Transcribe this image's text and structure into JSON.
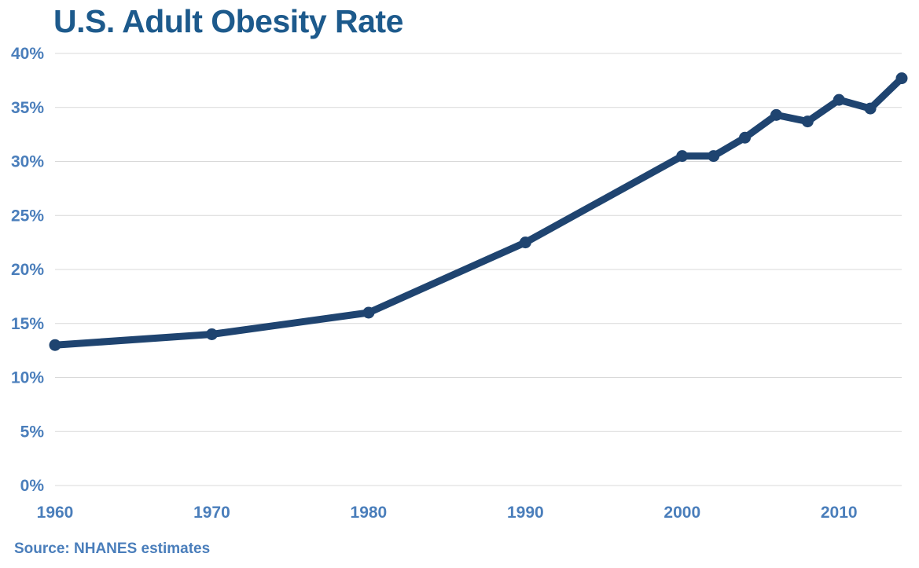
{
  "header": {
    "title": "U.S. Adult Obesity Rate",
    "title_color": "#1D5A8C"
  },
  "footer": {
    "source_label": "Source: NHANES estimates"
  },
  "chart_data": {
    "type": "line",
    "title": "U.S. Adult Obesity Rate",
    "x": [
      1960,
      1970,
      1980,
      1990,
      2000,
      2002,
      2004,
      2006,
      2008,
      2010,
      2012,
      2014
    ],
    "series": [
      {
        "name": "U.S. adult obesity rate (%)",
        "values": [
          13.0,
          14.0,
          16.0,
          22.5,
          30.5,
          30.5,
          32.2,
          34.3,
          33.7,
          35.7,
          34.9,
          37.7
        ]
      }
    ],
    "xlabel": "",
    "ylabel": "",
    "xlim": [
      1960,
      2014
    ],
    "ylim": [
      0,
      40
    ],
    "y_tick_step": 5,
    "y_tick_suffix": "%",
    "y_ticks": [
      "0%",
      "5%",
      "10%",
      "15%",
      "20%",
      "25%",
      "30%",
      "35%",
      "40%"
    ],
    "x_ticks": [
      1960,
      1970,
      1980,
      1990,
      2000,
      2010
    ],
    "grid": "horizontal",
    "legend": "none",
    "line_color": "#1F4470",
    "marker": "circle",
    "marker_radius": 7.5,
    "line_width": 9,
    "gridline_color": "#D9D9D9",
    "tick_label_color": "#4A7EBB",
    "source": "Source: NHANES estimates"
  }
}
